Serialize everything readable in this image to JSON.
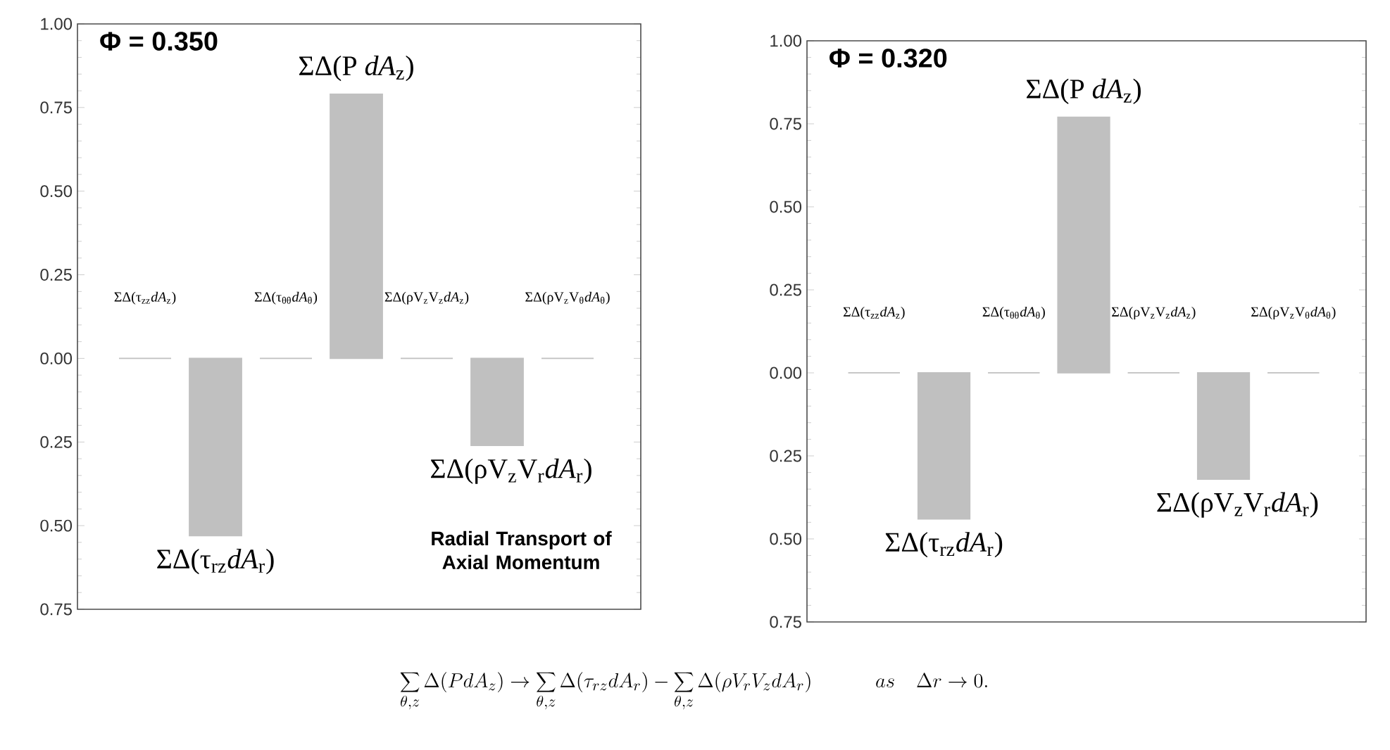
{
  "chart_data": [
    {
      "type": "bar",
      "title": "Φ = 0.350",
      "categories": [
        "ΣΔ(τ$_{zz}$*dA*$_{z}$)",
        "ΣΔ(τ$_{rz}$*dA*$_{r}$)",
        "ΣΔ(τ$_{θθ}$*dA*$_{θ}$)",
        "ΣΔ(P *dA*$_{z}$)",
        "ΣΔ(ρV$_{z}$V$_{z}$*dA*$_{z}$)",
        "ΣΔ(ρV$_{z}$V$_{r}$*dA*$_{r}$)",
        "ΣΔ(ρV$_{z}$V$_{θ}$*dA*$_{θ}$)"
      ],
      "values": [
        0,
        -0.53,
        0,
        0.79,
        0,
        -0.26,
        0
      ],
      "color": "#c0c0c0",
      "ylim": [
        -0.75,
        1.0
      ],
      "yticks": [
        {
          "value": -0.75,
          "label": "0.75"
        },
        {
          "value": -0.5,
          "label": "0.50"
        },
        {
          "value": -0.25,
          "label": "0.25"
        },
        {
          "value": 0,
          "label": "0.00"
        },
        {
          "value": 0.25,
          "label": "0.25"
        },
        {
          "value": 0.5,
          "label": "0.50"
        },
        {
          "value": 0.75,
          "label": "0.75"
        },
        {
          "value": 1.0,
          "label": "1.00"
        }
      ],
      "annotations": [
        "Radial Transport of Axial Momentum"
      ]
    },
    {
      "type": "bar",
      "title": "Φ = 0.320",
      "categories": [
        "ΣΔ(τ$_{zz}$*dA*$_{z}$)",
        "ΣΔ(τ$_{rz}$*dA*$_{r}$)",
        "ΣΔ(τ$_{θθ}$*dA*$_{θ}$)",
        "ΣΔ(P *dA*$_{z}$)",
        "ΣΔ(ρV$_{z}$V$_{z}$*dA*$_{z}$)",
        "ΣΔ(ρV$_{z}$V$_{r}$*dA*$_{r}$)",
        "ΣΔ(ρV$_{z}$V$_{θ}$*dA*$_{θ}$)"
      ],
      "values": [
        0,
        -0.44,
        0,
        0.77,
        0,
        -0.32,
        0
      ],
      "color": "#c0c0c0",
      "ylim": [
        -0.75,
        1.0
      ],
      "yticks": [
        {
          "value": -0.75,
          "label": "0.75"
        },
        {
          "value": -0.5,
          "label": "0.50"
        },
        {
          "value": -0.25,
          "label": "0.25"
        },
        {
          "value": 0,
          "label": "0.00"
        },
        {
          "value": 0.25,
          "label": "0.25"
        },
        {
          "value": 0.5,
          "label": "0.50"
        },
        {
          "value": 0.75,
          "label": "0.75"
        },
        {
          "value": 1.0,
          "label": "1.00"
        }
      ],
      "annotations": [
        "\\sum_{\\theta,z}\\Delta(PdA_z)\\rightarrow\\sum_{\\theta,z}\\Delta(\\tau_{rz}dA_r)-\\sum_{\\theta,z}\\Delta(\\rho V_rV_zdA_r)\\qquad\\quad as\\quad\\Delta r\\rightarrow 0."
      ]
    }
  ]
}
